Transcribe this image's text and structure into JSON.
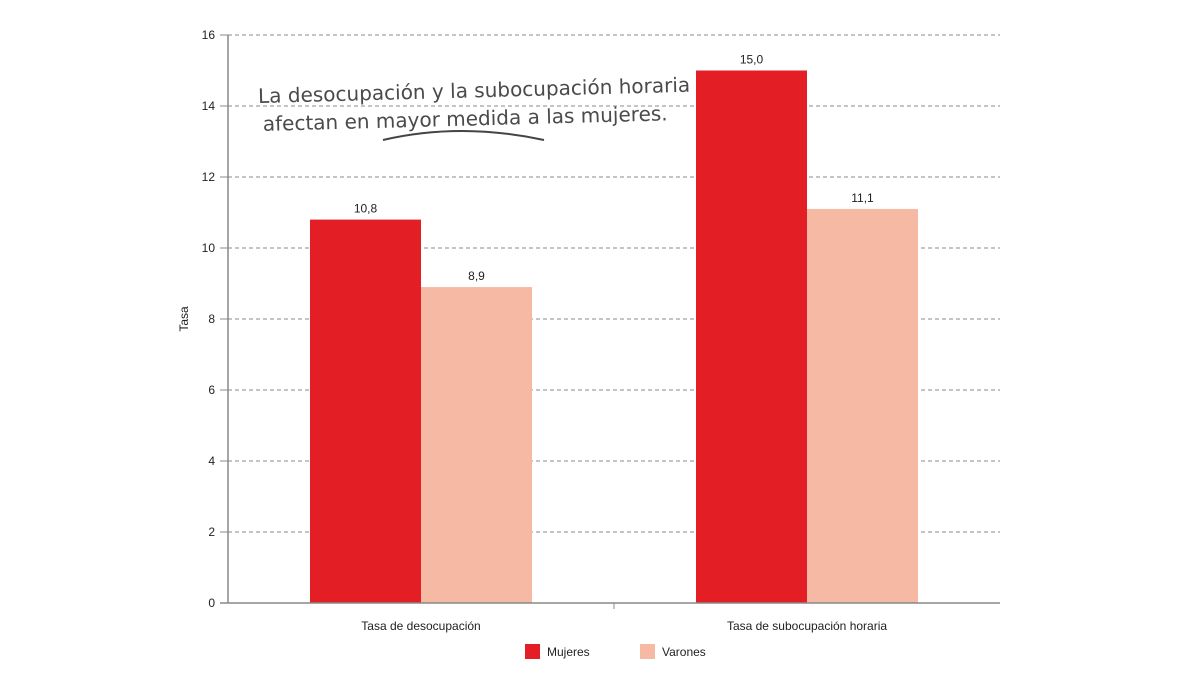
{
  "chart_data": {
    "type": "bar",
    "title": "",
    "xlabel": "",
    "ylabel": "Tasa",
    "ylim": [
      0,
      16
    ],
    "yticks": [
      0,
      2,
      4,
      6,
      8,
      10,
      12,
      14,
      16
    ],
    "grid": true,
    "legend_placement": "bottom",
    "categories": [
      "Tasa de desocupación",
      "Tasa de subocupación horaria"
    ],
    "series": [
      {
        "name": "Mujeres",
        "values": [
          10.8,
          15.0
        ],
        "labels": [
          "10,8",
          "15,0"
        ],
        "color": "#e31e24"
      },
      {
        "name": "Varones",
        "values": [
          8.9,
          11.1
        ],
        "labels": [
          "8,9",
          "11,1"
        ],
        "color": "#f6b9a3"
      }
    ],
    "annotation": [
      "La desocupación y la subocupación horaria",
      "afectan en mayor medida a las mujeres."
    ]
  }
}
